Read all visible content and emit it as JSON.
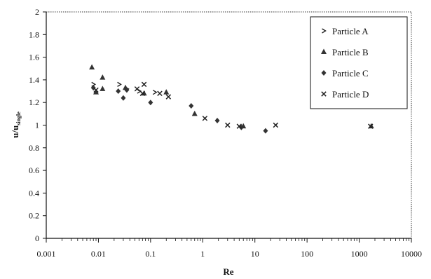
{
  "chart_data": {
    "type": "scatter",
    "title": "",
    "xlabel": "Re",
    "ylabel_main": "u/u",
    "ylabel_sub": "single",
    "x_scale": "log",
    "xlim": [
      0.001,
      10000
    ],
    "ylim": [
      0,
      2
    ],
    "x_ticks": [
      0.001,
      0.01,
      0.1,
      1,
      10,
      100,
      1000,
      10000
    ],
    "x_tick_labels": [
      "0.001",
      "0.01",
      "0.1",
      "1",
      "10",
      "100",
      "1000",
      "10000"
    ],
    "y_ticks": [
      0,
      0.2,
      0.4,
      0.6,
      0.8,
      1,
      1.2,
      1.4,
      1.6,
      1.8,
      2
    ],
    "y_tick_labels": [
      "0",
      "0.2",
      "0.4",
      "0.6",
      "0.8",
      "1",
      "1.2",
      "1.4",
      "1.6",
      "1.8",
      "2"
    ],
    "grid": false,
    "legend_position": "top-right",
    "series": [
      {
        "name": "Particle A",
        "marker": "chevron",
        "points": [
          [
            0.008,
            1.36
          ],
          [
            0.025,
            1.36
          ],
          [
            0.035,
            1.32
          ],
          [
            0.06,
            1.3
          ],
          [
            0.12,
            1.29
          ]
        ]
      },
      {
        "name": "Particle B",
        "marker": "triangle",
        "points": [
          [
            0.0075,
            1.51
          ],
          [
            0.009,
            1.29
          ],
          [
            0.012,
            1.42
          ],
          [
            0.012,
            1.32
          ],
          [
            0.033,
            1.33
          ],
          [
            0.075,
            1.28
          ],
          [
            0.2,
            1.29
          ],
          [
            0.7,
            1.1
          ],
          [
            6,
            0.99
          ],
          [
            1700,
            0.99
          ]
        ]
      },
      {
        "name": "Particle C",
        "marker": "diamond",
        "points": [
          [
            0.008,
            1.33
          ],
          [
            0.024,
            1.3
          ],
          [
            0.03,
            1.24
          ],
          [
            0.035,
            1.31
          ],
          [
            0.1,
            1.2
          ],
          [
            0.6,
            1.17
          ],
          [
            1.9,
            1.04
          ],
          [
            5.5,
            0.98
          ],
          [
            16,
            0.95
          ]
        ]
      },
      {
        "name": "Particle D",
        "marker": "cross",
        "points": [
          [
            0.009,
            1.31
          ],
          [
            0.055,
            1.32
          ],
          [
            0.075,
            1.36
          ],
          [
            0.07,
            1.28
          ],
          [
            0.15,
            1.28
          ],
          [
            0.22,
            1.25
          ],
          [
            1.1,
            1.06
          ],
          [
            3,
            1.0
          ],
          [
            5,
            0.99
          ],
          [
            25,
            1.0
          ],
          [
            1650,
            0.99
          ]
        ]
      }
    ]
  }
}
